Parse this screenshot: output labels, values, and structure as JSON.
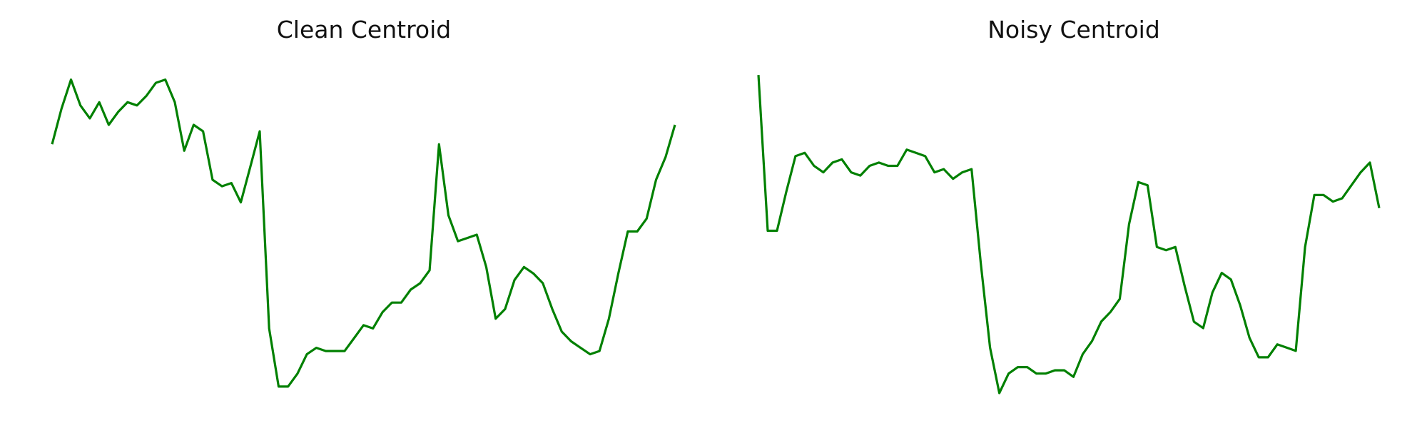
{
  "chart_data": [
    {
      "type": "line",
      "title": "Clean Centroid",
      "xlabel": "",
      "ylabel": "",
      "grid": false,
      "axes_visible": false,
      "ylim": [
        0,
        1
      ],
      "series": [
        {
          "color": "#008000",
          "y": [
            0.77,
            0.88,
            0.97,
            0.89,
            0.85,
            0.9,
            0.83,
            0.87,
            0.9,
            0.89,
            0.92,
            0.96,
            0.97,
            0.9,
            0.75,
            0.83,
            0.81,
            0.66,
            0.64,
            0.65,
            0.59,
            0.7,
            0.81,
            0.2,
            0.02,
            0.02,
            0.06,
            0.12,
            0.14,
            0.13,
            0.13,
            0.13,
            0.17,
            0.21,
            0.2,
            0.25,
            0.28,
            0.28,
            0.32,
            0.34,
            0.38,
            0.77,
            0.55,
            0.47,
            0.48,
            0.49,
            0.39,
            0.23,
            0.26,
            0.35,
            0.39,
            0.37,
            0.34,
            0.26,
            0.19,
            0.16,
            0.14,
            0.12,
            0.13,
            0.23,
            0.37,
            0.5,
            0.5,
            0.54,
            0.66,
            0.73,
            0.83
          ]
        }
      ]
    },
    {
      "type": "line",
      "title": "Noisy Centroid",
      "xlabel": "",
      "ylabel": "",
      "grid": false,
      "axes_visible": false,
      "ylim": [
        0,
        1
      ],
      "series": [
        {
          "color": "#008000",
          "y": [
            0.98,
            0.5,
            0.5,
            0.62,
            0.73,
            0.74,
            0.7,
            0.68,
            0.71,
            0.72,
            0.68,
            0.67,
            0.7,
            0.71,
            0.7,
            0.7,
            0.75,
            0.74,
            0.73,
            0.68,
            0.69,
            0.66,
            0.68,
            0.69,
            0.4,
            0.14,
            0.0,
            0.06,
            0.08,
            0.08,
            0.06,
            0.06,
            0.07,
            0.07,
            0.05,
            0.12,
            0.16,
            0.22,
            0.25,
            0.29,
            0.52,
            0.65,
            0.64,
            0.45,
            0.44,
            0.45,
            0.33,
            0.22,
            0.2,
            0.31,
            0.37,
            0.35,
            0.27,
            0.17,
            0.11,
            0.11,
            0.15,
            0.14,
            0.13,
            0.45,
            0.61,
            0.61,
            0.59,
            0.6,
            0.64,
            0.68,
            0.71,
            0.57
          ]
        }
      ]
    }
  ]
}
